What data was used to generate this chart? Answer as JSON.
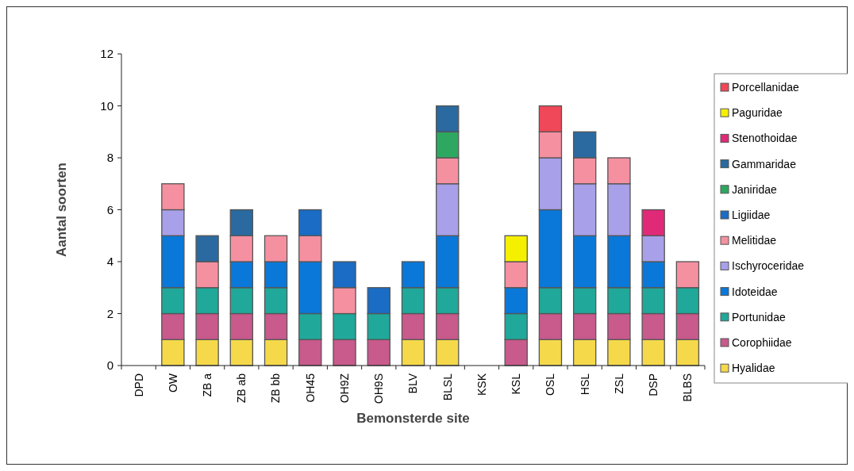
{
  "chart_data": {
    "type": "bar",
    "stacked": true,
    "xlabel": "Bemonsterde site",
    "ylabel": "Aantal soorten",
    "categories": [
      "DPD",
      "OW",
      "ZB a",
      "ZB ab",
      "ZB bb",
      "OH45",
      "OH9Z",
      "OH9S",
      "BLV",
      "BLSL",
      "KSK",
      "KSL",
      "OSL",
      "HSL",
      "ZSL",
      "DSP",
      "BLBS"
    ],
    "series": [
      {
        "name": "Hyalidae",
        "color": "#f5d94a",
        "values": [
          0,
          1,
          1,
          1,
          1,
          0,
          0,
          0,
          1,
          1,
          0,
          0,
          1,
          1,
          1,
          1,
          1
        ]
      },
      {
        "name": "Corophiidae",
        "color": "#c85a8c",
        "values": [
          0,
          1,
          1,
          1,
          1,
          1,
          1,
          1,
          1,
          1,
          0,
          1,
          1,
          1,
          1,
          1,
          1
        ]
      },
      {
        "name": "Portunidae",
        "color": "#20a89a",
        "values": [
          0,
          1,
          1,
          1,
          1,
          1,
          1,
          1,
          1,
          1,
          0,
          1,
          1,
          1,
          1,
          1,
          1
        ]
      },
      {
        "name": "Idoteidae",
        "color": "#0a78d8",
        "values": [
          0,
          2,
          0,
          1,
          1,
          2,
          0,
          0,
          1,
          2,
          0,
          1,
          3,
          2,
          2,
          1,
          0
        ]
      },
      {
        "name": "Ischyroceridae",
        "color": "#a8a0e8",
        "values": [
          0,
          1,
          0,
          0,
          0,
          0,
          0,
          0,
          0,
          2,
          0,
          0,
          2,
          2,
          2,
          1,
          0
        ]
      },
      {
        "name": "Melitidae",
        "color": "#f590a0",
        "values": [
          0,
          1,
          1,
          1,
          1,
          1,
          1,
          0,
          0,
          1,
          0,
          1,
          1,
          1,
          1,
          0,
          1
        ]
      },
      {
        "name": "Ligiidae",
        "color": "#1a6cc4",
        "values": [
          0,
          0,
          0,
          0,
          0,
          1,
          1,
          1,
          0,
          0,
          0,
          0,
          0,
          0,
          0,
          0,
          0
        ]
      },
      {
        "name": "Janiridae",
        "color": "#2ea860",
        "values": [
          0,
          0,
          0,
          0,
          0,
          0,
          0,
          0,
          0,
          1,
          0,
          0,
          0,
          0,
          0,
          0,
          0
        ]
      },
      {
        "name": "Gammaridae",
        "color": "#2a6aa0",
        "values": [
          0,
          0,
          1,
          1,
          0,
          0,
          0,
          0,
          0,
          1,
          0,
          0,
          0,
          1,
          0,
          0,
          0
        ]
      },
      {
        "name": "Stenothoidae",
        "color": "#e02a78",
        "values": [
          0,
          0,
          0,
          0,
          0,
          0,
          0,
          0,
          0,
          0,
          0,
          0,
          0,
          0,
          0,
          1,
          0
        ]
      },
      {
        "name": "Paguridae",
        "color": "#f5f000",
        "values": [
          0,
          0,
          0,
          0,
          0,
          0,
          0,
          0,
          0,
          0,
          0,
          1,
          0,
          0,
          0,
          0,
          0
        ]
      },
      {
        "name": "Porcellanidae",
        "color": "#f04858",
        "values": [
          0,
          0,
          0,
          0,
          0,
          0,
          0,
          0,
          0,
          0,
          0,
          0,
          1,
          0,
          0,
          0,
          0
        ]
      }
    ],
    "ylim": [
      0,
      12
    ],
    "yticks": [
      0,
      2,
      4,
      6,
      8,
      10,
      12
    ],
    "grid": false,
    "legend": "right"
  }
}
